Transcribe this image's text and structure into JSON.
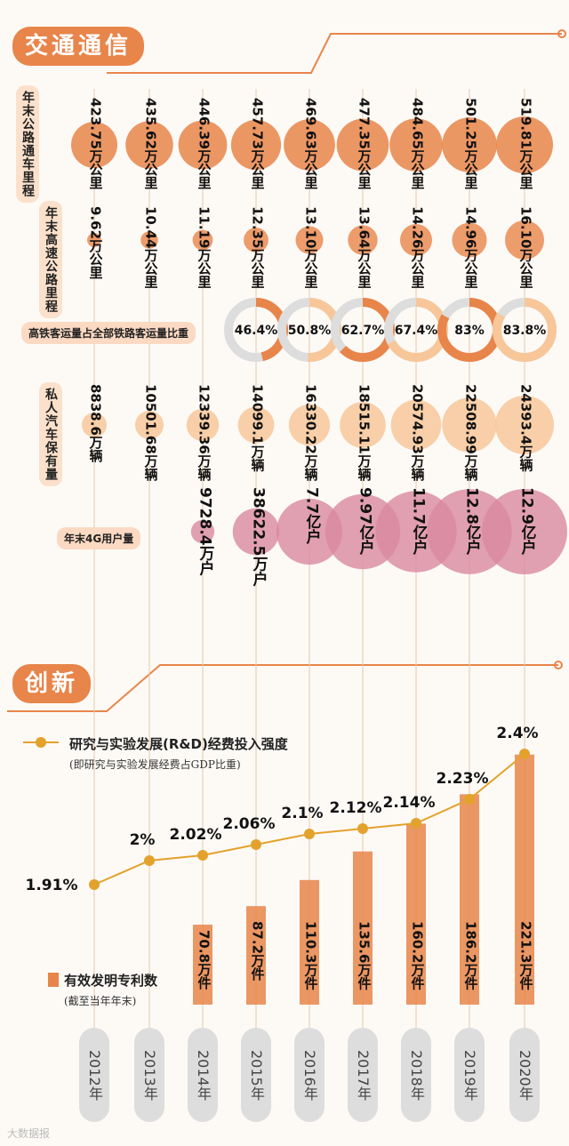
{
  "sections": {
    "transport": "交通通信",
    "innovation": "创新"
  },
  "years": [
    "2012年",
    "2013年",
    "2014年",
    "2015年",
    "2016年",
    "2017年",
    "2018年",
    "2019年",
    "2020年"
  ],
  "row_labels": {
    "highway": "年末公路通车里程",
    "expressway": "年末高速公路里程",
    "rail_share": "高铁客运量占全部铁路客运量比重",
    "cars": "私人汽车保有量",
    "users_4g": "年末4G用户量"
  },
  "legend": {
    "rd_title": "研究与实验发展(R&D)经费投入强度",
    "rd_note": "(即研究与实验发展经费占GDP比重)",
    "patent_title": "有效发明专利数",
    "patent_note": "(截至当年年末)"
  },
  "watermark": "大数据报",
  "colors": {
    "orange": "#e8854a",
    "light_orange": "#f7c79a",
    "pink": "#d98aa0",
    "grey": "#dddddd",
    "line": "#e3a22c"
  },
  "chart_data": [
    {
      "type": "bubble",
      "title": "年末公路通车里程",
      "categories": [
        "2012",
        "2013",
        "2014",
        "2015",
        "2016",
        "2017",
        "2018",
        "2019",
        "2020"
      ],
      "values": [
        423.75,
        435.62,
        446.39,
        457.73,
        469.63,
        477.35,
        484.65,
        501.25,
        519.81
      ],
      "labels": [
        "423.75万公里",
        "435.62万公里",
        "446.39万公里",
        "457.73万公里",
        "469.63万公里",
        "477.35万公里",
        "484.65万公里",
        "501.25万公里",
        "519.81万公里"
      ]
    },
    {
      "type": "bubble",
      "title": "年末高速公路里程",
      "categories": [
        "2012",
        "2013",
        "2014",
        "2015",
        "2016",
        "2017",
        "2018",
        "2019",
        "2020"
      ],
      "values": [
        9.62,
        10.44,
        11.19,
        12.35,
        13.1,
        13.64,
        14.26,
        14.96,
        16.1
      ],
      "labels": [
        "9.62万公里",
        "10.44万公里",
        "11.19万公里",
        "12.35万公里",
        "13.10万公里",
        "13.64万公里",
        "14.26万公里",
        "14.96万公里",
        "16.10万公里"
      ]
    },
    {
      "type": "donut",
      "title": "高铁客运量占全部铁路客运量比重",
      "categories": [
        "2015",
        "2016",
        "2017",
        "2018",
        "2019",
        "2020"
      ],
      "values": [
        46.4,
        50.8,
        62.7,
        67.4,
        83,
        83.8
      ],
      "labels": [
        "46.4%",
        "50.8%",
        "62.7%",
        "67.4%",
        "83%",
        "83.8%"
      ]
    },
    {
      "type": "bubble",
      "title": "私人汽车保有量",
      "categories": [
        "2012",
        "2013",
        "2014",
        "2015",
        "2016",
        "2017",
        "2018",
        "2019",
        "2020"
      ],
      "values": [
        8838.6,
        10501.68,
        12339.36,
        14099.1,
        16330.22,
        18515.11,
        20574.93,
        22508.99,
        24393.4
      ],
      "labels": [
        "8838.6万辆",
        "10501.68万辆",
        "12339.36万辆",
        "14099.1万辆",
        "16330.22万辆",
        "18515.11万辆",
        "20574.93万辆",
        "22508.99万辆",
        "24393.4万辆"
      ]
    },
    {
      "type": "bubble",
      "title": "年末4G用户量",
      "categories": [
        "2014",
        "2015",
        "2016",
        "2017",
        "2018",
        "2019",
        "2020"
      ],
      "values": [
        9728.4,
        38622.5,
        77000,
        99700,
        117000,
        128000,
        129000
      ],
      "labels": [
        "9728.4万户",
        "38622.5万户",
        "7.7亿户",
        "9.97亿户",
        "11.7亿户",
        "12.8亿户",
        "12.9亿户"
      ]
    },
    {
      "type": "line",
      "title": "研究与实验发展(R&D)经费投入强度",
      "categories": [
        "2012",
        "2013",
        "2014",
        "2015",
        "2016",
        "2017",
        "2018",
        "2019",
        "2020"
      ],
      "values": [
        1.91,
        2.0,
        2.02,
        2.06,
        2.1,
        2.12,
        2.14,
        2.23,
        2.4
      ],
      "labels": [
        "1.91%",
        "2%",
        "2.02%",
        "2.06%",
        "2.1%",
        "2.12%",
        "2.14%",
        "2.23%",
        "2.4%"
      ],
      "ylim": [
        1.8,
        2.5
      ]
    },
    {
      "type": "bar",
      "title": "有效发明专利数",
      "categories": [
        "2014",
        "2015",
        "2016",
        "2017",
        "2018",
        "2019",
        "2020"
      ],
      "values": [
        70.8,
        87.2,
        110.3,
        135.6,
        160.2,
        186.2,
        221.3
      ],
      "labels": [
        "70.8万件",
        "87.2万件",
        "110.3万件",
        "135.6万件",
        "160.2万件",
        "186.2万件",
        "221.3万件"
      ],
      "ylim": [
        0,
        240
      ]
    }
  ]
}
